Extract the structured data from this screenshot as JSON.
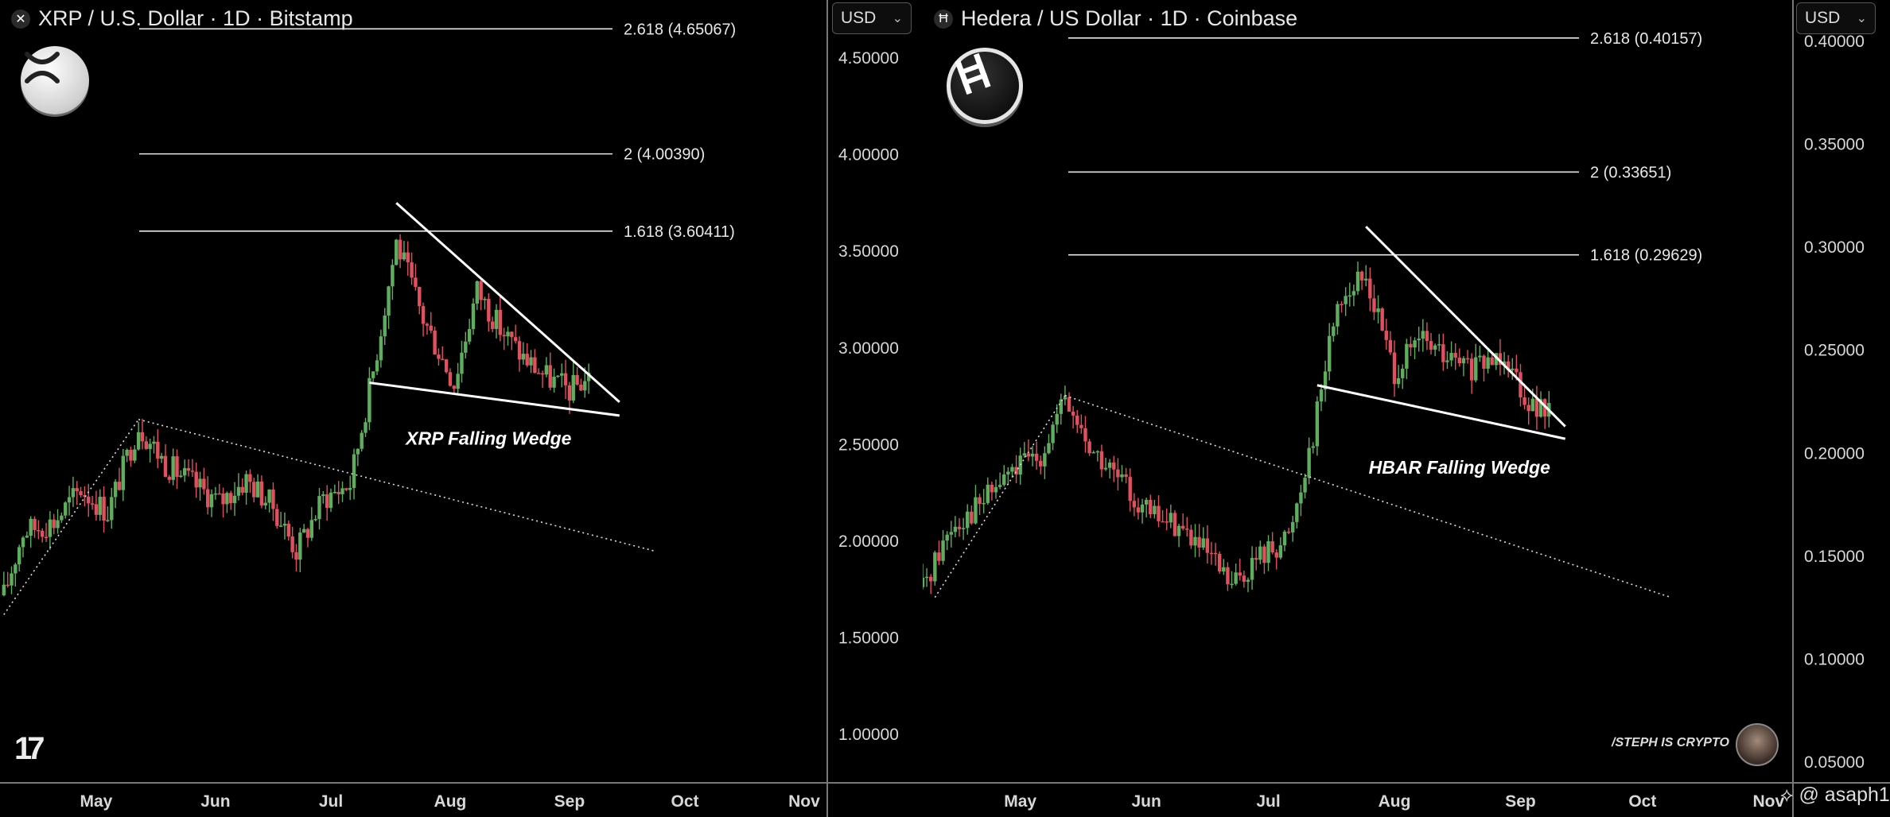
{
  "watermark": "@ asaph1",
  "chart_data": [
    {
      "type": "candlestick",
      "title": "XRP / U.S. Dollar · 1D · Bitstamp",
      "currency": "USD",
      "y_ticks": [
        "1.00000",
        "1.50000",
        "2.00000",
        "2.50000",
        "3.00000",
        "3.50000",
        "4.00000",
        "4.50000"
      ],
      "ylim": [
        0.75,
        4.8
      ],
      "x_ticks": [
        "May",
        "Jun",
        "Jul",
        "Aug",
        "Sep",
        "Oct",
        "Nov"
      ],
      "fib_levels": [
        {
          "label": "1.618 (3.60411)",
          "value": 3.60411
        },
        {
          "label": "2 (4.00390)",
          "value": 4.0039
        },
        {
          "label": "2.618 (4.65067)",
          "value": 4.65067
        }
      ],
      "annotation": "XRP Falling Wedge",
      "series": [
        {
          "date": "2025-04-07",
          "close": 1.72
        },
        {
          "date": "2025-04-12",
          "close": 2.05
        },
        {
          "date": "2025-04-20",
          "close": 2.1
        },
        {
          "date": "2025-04-27",
          "close": 2.27
        },
        {
          "date": "2025-05-04",
          "close": 2.15
        },
        {
          "date": "2025-05-12",
          "close": 2.6
        },
        {
          "date": "2025-05-19",
          "close": 2.4
        },
        {
          "date": "2025-05-26",
          "close": 2.3
        },
        {
          "date": "2025-06-02",
          "close": 2.2
        },
        {
          "date": "2025-06-09",
          "close": 2.32
        },
        {
          "date": "2025-06-16",
          "close": 2.18
        },
        {
          "date": "2025-06-22",
          "close": 1.95
        },
        {
          "date": "2025-06-29",
          "close": 2.22
        },
        {
          "date": "2025-07-06",
          "close": 2.3
        },
        {
          "date": "2025-07-12",
          "close": 2.88
        },
        {
          "date": "2025-07-18",
          "close": 3.55
        },
        {
          "date": "2025-07-25",
          "close": 3.15
        },
        {
          "date": "2025-08-02",
          "close": 2.82
        },
        {
          "date": "2025-08-08",
          "close": 3.3
        },
        {
          "date": "2025-08-14",
          "close": 3.1
        },
        {
          "date": "2025-08-20",
          "close": 2.95
        },
        {
          "date": "2025-08-26",
          "close": 2.85
        },
        {
          "date": "2025-09-01",
          "close": 2.78
        },
        {
          "date": "2025-09-06",
          "close": 2.85
        }
      ]
    },
    {
      "type": "candlestick",
      "title": "Hedera / US Dollar · 1D · Coinbase",
      "currency": "USD",
      "y_ticks": [
        "0.05000",
        "0.10000",
        "0.15000",
        "0.20000",
        "0.25000",
        "0.30000",
        "0.35000",
        "0.40000"
      ],
      "ylim": [
        0.04,
        0.42
      ],
      "x_ticks": [
        "May",
        "Jun",
        "Jul",
        "Aug",
        "Sep",
        "Oct",
        "Nov"
      ],
      "fib_levels": [
        {
          "label": "1.618 (0.29629)",
          "value": 0.29629
        },
        {
          "label": "2 (0.33651)",
          "value": 0.33651
        },
        {
          "label": "2.618 (0.40157)",
          "value": 0.40157
        }
      ],
      "annotation": "HBAR Falling Wedge",
      "series": [
        {
          "date": "2025-04-07",
          "close": 0.135
        },
        {
          "date": "2025-04-14",
          "close": 0.165
        },
        {
          "date": "2025-04-21",
          "close": 0.175
        },
        {
          "date": "2025-04-28",
          "close": 0.19
        },
        {
          "date": "2025-05-06",
          "close": 0.2
        },
        {
          "date": "2025-05-12",
          "close": 0.225
        },
        {
          "date": "2025-05-19",
          "close": 0.2
        },
        {
          "date": "2025-05-26",
          "close": 0.185
        },
        {
          "date": "2025-06-02",
          "close": 0.17
        },
        {
          "date": "2025-06-09",
          "close": 0.165
        },
        {
          "date": "2025-06-16",
          "close": 0.15
        },
        {
          "date": "2025-06-22",
          "close": 0.135
        },
        {
          "date": "2025-06-29",
          "close": 0.15
        },
        {
          "date": "2025-07-06",
          "close": 0.16
        },
        {
          "date": "2025-07-12",
          "close": 0.21
        },
        {
          "date": "2025-07-18",
          "close": 0.275
        },
        {
          "date": "2025-07-25",
          "close": 0.285
        },
        {
          "date": "2025-08-01",
          "close": 0.24
        },
        {
          "date": "2025-08-08",
          "close": 0.255
        },
        {
          "date": "2025-08-14",
          "close": 0.245
        },
        {
          "date": "2025-08-21",
          "close": 0.24
        },
        {
          "date": "2025-08-28",
          "close": 0.25
        },
        {
          "date": "2025-09-03",
          "close": 0.225
        },
        {
          "date": "2025-09-08",
          "close": 0.218
        }
      ]
    }
  ],
  "branding": {
    "tradingview_logo": "17",
    "signature": "/STEPH IS CRYPTO",
    "xrp_symbol": "✕",
    "hbar_symbol": "Ħ"
  },
  "colors": {
    "up": "#5fae5e",
    "down": "#e0505e",
    "line": "#ffffff",
    "bg": "#000000"
  }
}
